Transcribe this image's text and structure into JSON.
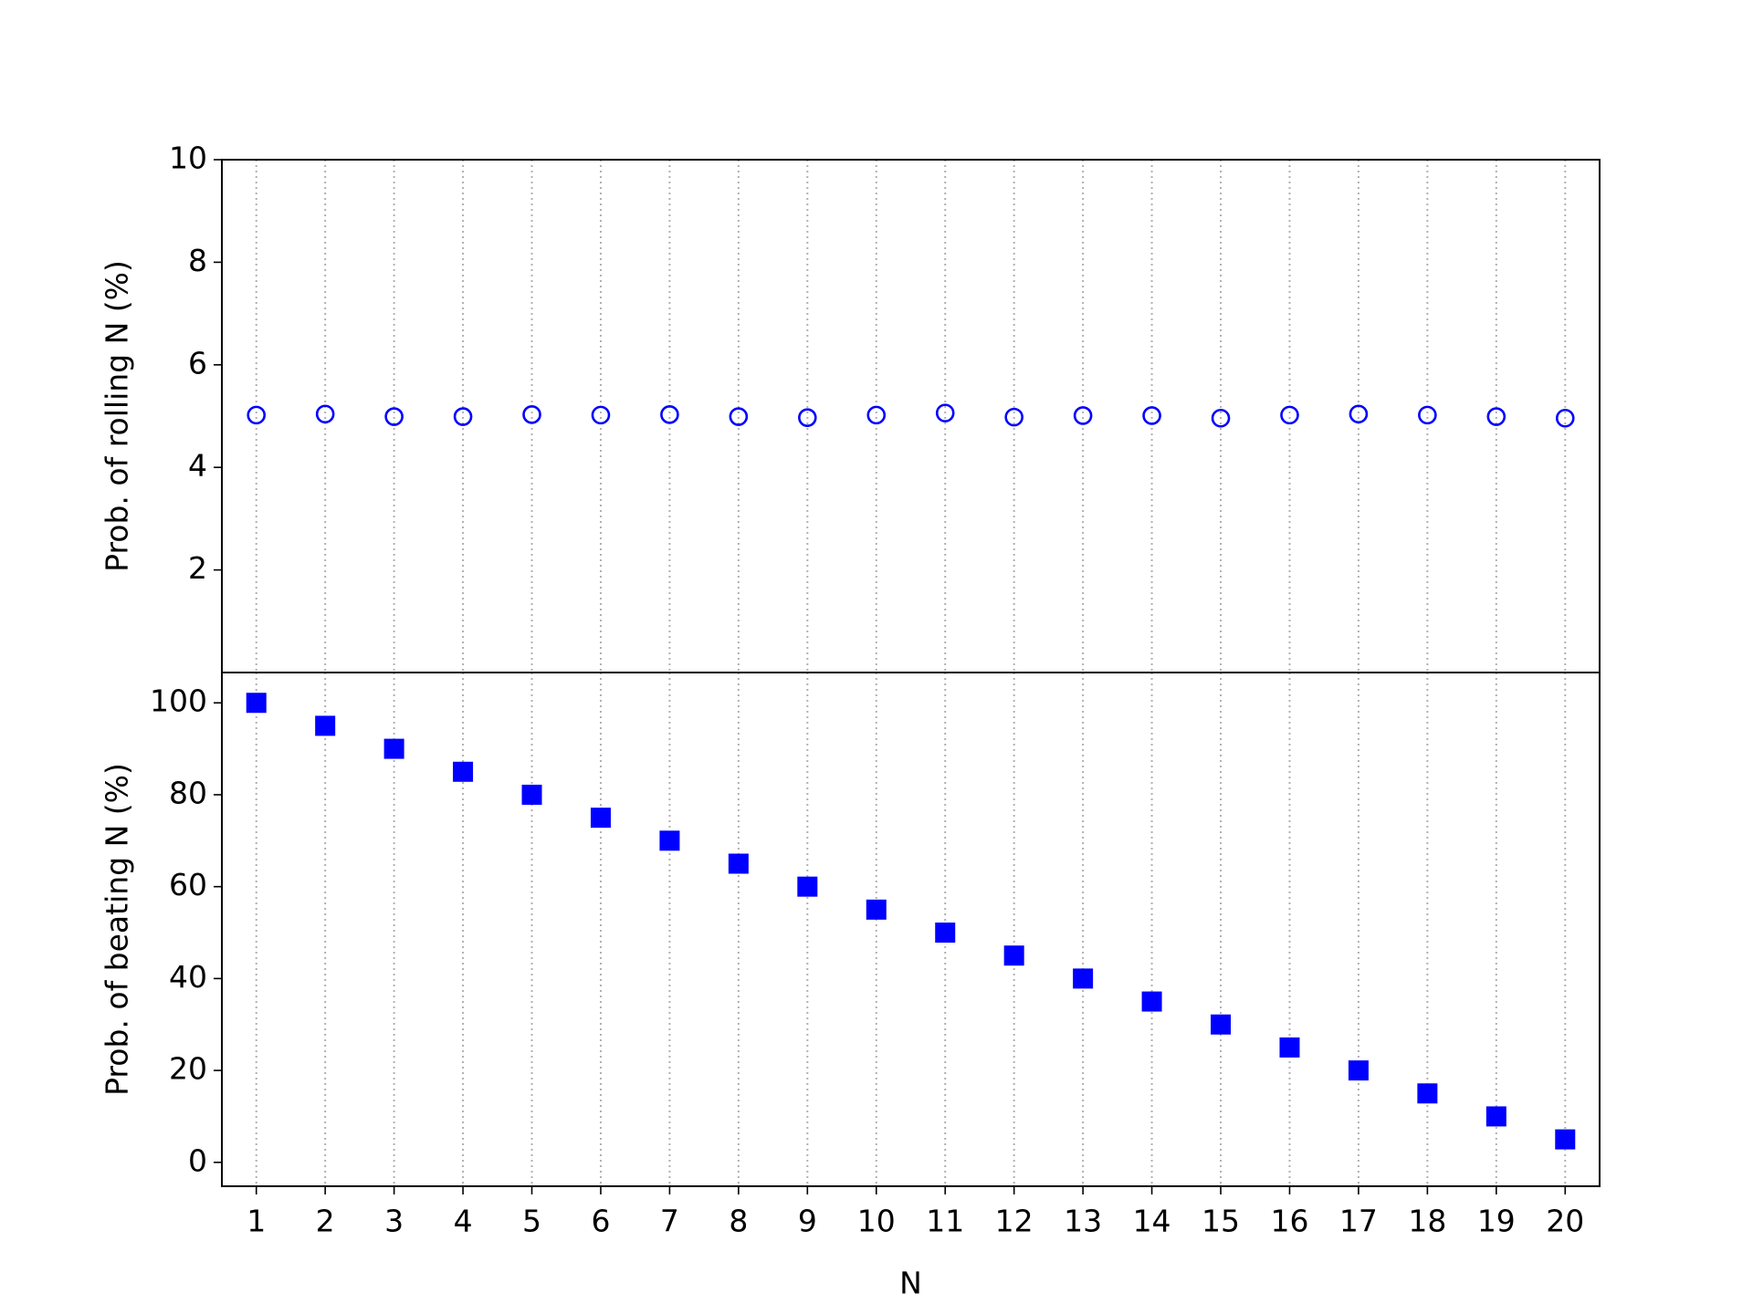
{
  "chart_data": [
    {
      "type": "scatter",
      "ylabel": "Prob. of rolling N (%)",
      "x": [
        1,
        2,
        3,
        4,
        5,
        6,
        7,
        8,
        9,
        10,
        11,
        12,
        13,
        14,
        15,
        16,
        17,
        18,
        19,
        20
      ],
      "values": [
        5.02,
        5.04,
        4.99,
        4.99,
        5.03,
        5.02,
        5.03,
        4.99,
        4.97,
        5.02,
        5.06,
        4.98,
        5.01,
        5.01,
        4.96,
        5.02,
        5.04,
        5.02,
        4.99,
        4.96
      ],
      "color": "#0000ff",
      "marker": "open-circle",
      "xlim": [
        0.5,
        20.5
      ],
      "ylim": [
        0,
        10
      ],
      "yticks": [
        2,
        4,
        6,
        8,
        10
      ],
      "grid": "x"
    },
    {
      "type": "scatter",
      "ylabel": "Prob. of beating N (%)",
      "xlabel": "N",
      "x": [
        1,
        2,
        3,
        4,
        5,
        6,
        7,
        8,
        9,
        10,
        11,
        12,
        13,
        14,
        15,
        16,
        17,
        18,
        19,
        20
      ],
      "values": [
        100,
        95,
        90,
        85,
        80,
        75,
        70,
        65,
        60,
        55,
        50,
        45,
        40,
        35,
        30,
        25,
        20,
        15,
        10,
        5
      ],
      "color": "#0000ff",
      "marker": "filled-square",
      "xlim": [
        0.5,
        20.5
      ],
      "ylim": [
        -5.2,
        106.6
      ],
      "yticks": [
        0,
        20,
        40,
        60,
        80,
        100
      ],
      "xticks": [
        1,
        2,
        3,
        4,
        5,
        6,
        7,
        8,
        9,
        10,
        11,
        12,
        13,
        14,
        15,
        16,
        17,
        18,
        19,
        20
      ],
      "grid": "x"
    }
  ]
}
